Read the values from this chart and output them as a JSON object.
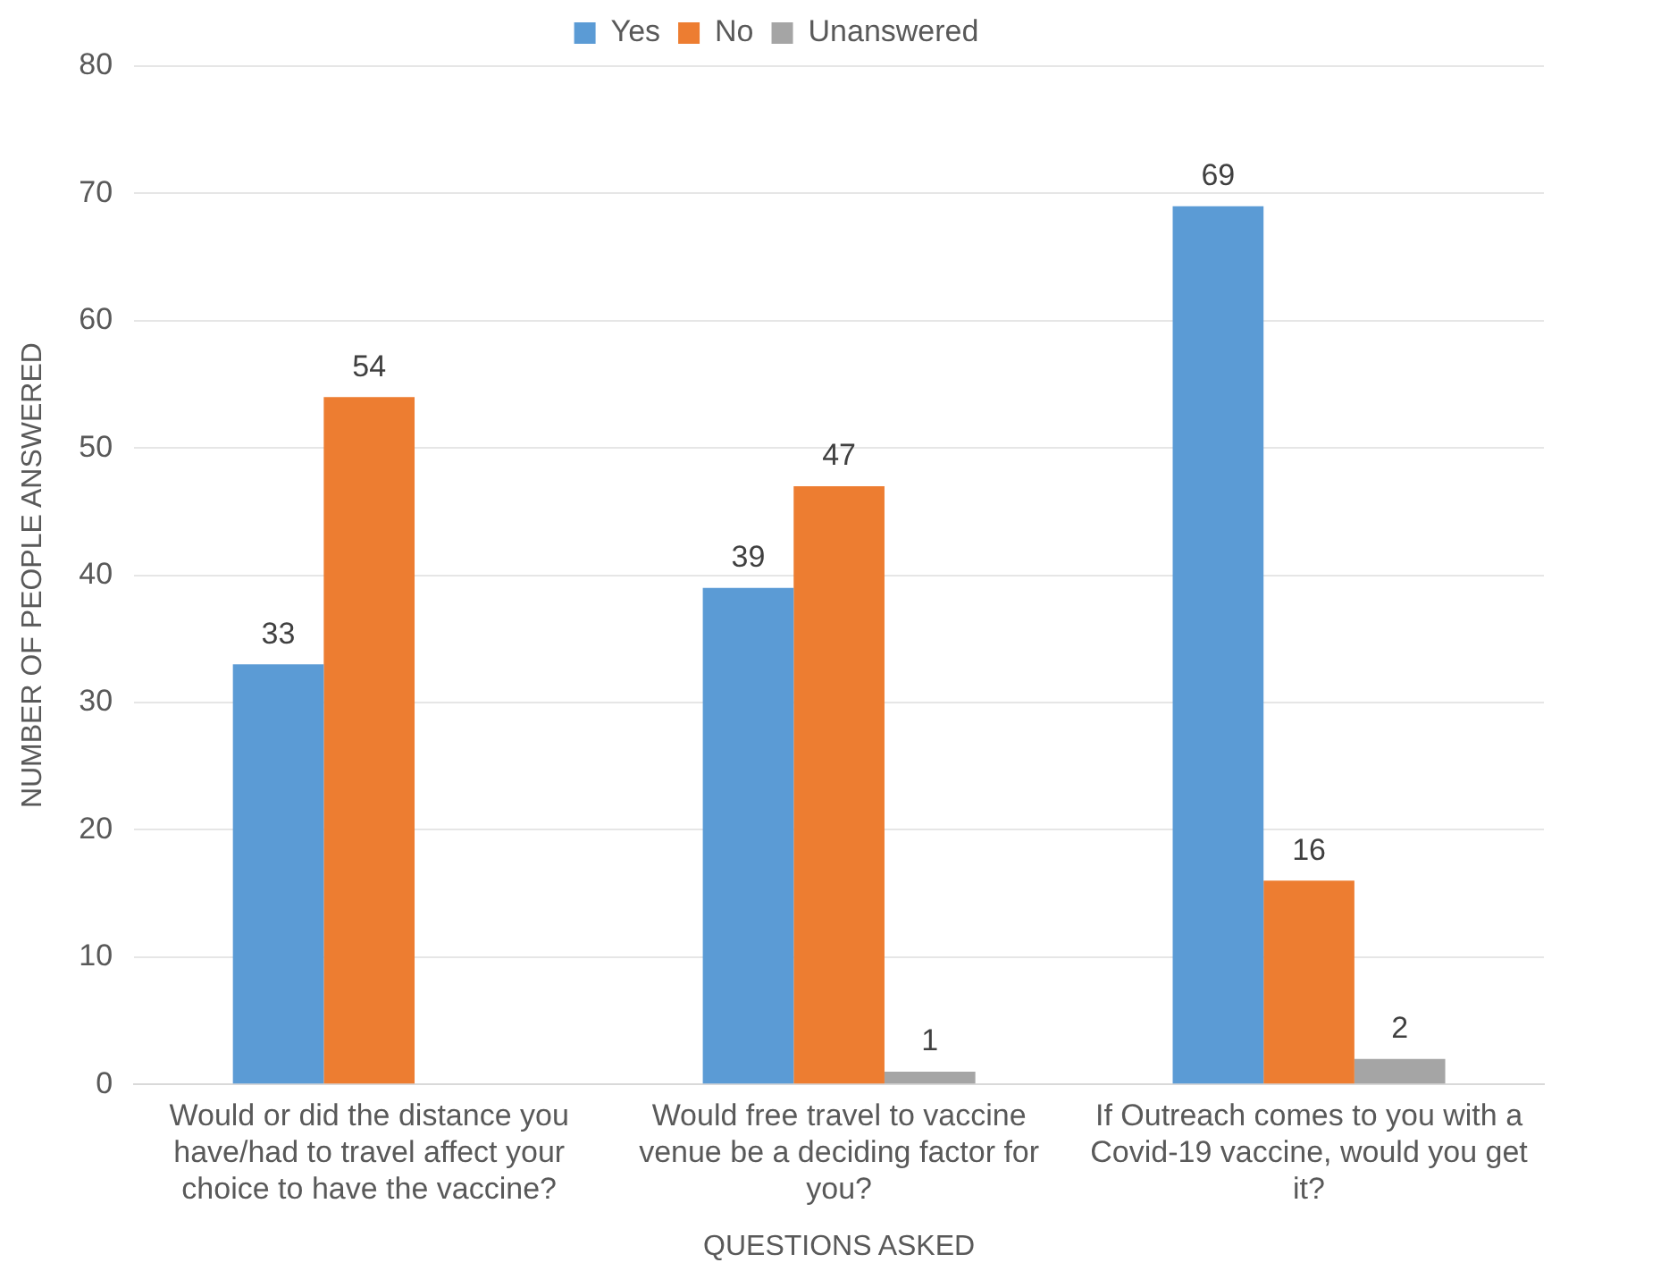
{
  "chart_data": {
    "type": "bar",
    "xlabel": "QUESTIONS ASKED",
    "ylabel": "NUMBER OF PEOPLE ANSWERED",
    "categories": [
      "Would or did the distance you have/had to travel affect your choice to have the vaccine?",
      "Would free travel to vaccine venue be a deciding factor for you?",
      "If Outreach comes to you with a Covid-19 vaccine, would you get it?"
    ],
    "series": [
      {
        "name": "Yes",
        "color": "#5b9bd5",
        "values": [
          33,
          39,
          69
        ]
      },
      {
        "name": "No",
        "color": "#ed7d31",
        "values": [
          54,
          47,
          16
        ]
      },
      {
        "name": "Unanswered",
        "color": "#a5a5a5",
        "values": [
          null,
          1,
          2
        ]
      }
    ],
    "ylim": [
      0,
      80
    ],
    "yticks": [
      0,
      10,
      20,
      30,
      40,
      50,
      60,
      70,
      80
    ],
    "grid": "y",
    "legend": "top",
    "data_labels": true
  }
}
